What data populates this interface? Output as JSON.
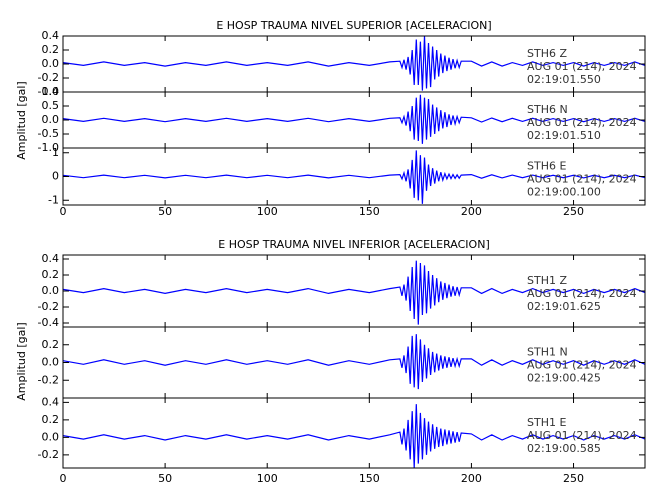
{
  "chart_data": [
    {
      "type": "line",
      "title": "E HOSP TRAUMA NIVEL SUPERIOR [ACELERACION]",
      "y_label": "Amplitud [gal]",
      "xlim": [
        0,
        285
      ],
      "xticks": [
        0,
        50,
        100,
        150,
        200,
        250
      ],
      "x": [
        0,
        10,
        20,
        30,
        40,
        50,
        60,
        70,
        80,
        90,
        100,
        110,
        120,
        130,
        140,
        150,
        160,
        165,
        166,
        167,
        168,
        169,
        170,
        171,
        172,
        173,
        174,
        175,
        176,
        177,
        178,
        179,
        180,
        181,
        182,
        183,
        184,
        185,
        186,
        187,
        188,
        189,
        190,
        191,
        192,
        193,
        194,
        195,
        200,
        205,
        210,
        215,
        220,
        225,
        230,
        235,
        240,
        245,
        250,
        255,
        260,
        265,
        270,
        275,
        280,
        285
      ],
      "panels": [
        {
          "annotation": [
            "STH6   Z",
            "AUG 01 (214), 2024",
            "02:19:01.550"
          ],
          "color": "#0000ff",
          "ylim": [
            -0.4,
            0.4
          ],
          "yticks": [
            -0.4,
            -0.2,
            {
              "value": 0,
              "label": "0.0"
            },
            0.2,
            0.4
          ],
          "values": [
            0.02,
            -0.02,
            0.03,
            -0.02,
            0.02,
            -0.03,
            0.02,
            -0.02,
            0.03,
            -0.02,
            0.02,
            -0.02,
            0.03,
            -0.03,
            0.02,
            -0.02,
            0.03,
            0.04,
            -0.05,
            0.06,
            -0.08,
            0.1,
            -0.15,
            0.2,
            -0.3,
            0.35,
            -0.3,
            0.32,
            -0.38,
            0.4,
            -0.35,
            0.3,
            -0.33,
            0.25,
            -0.22,
            0.2,
            -0.18,
            0.15,
            -0.13,
            0.12,
            -0.1,
            0.09,
            -0.08,
            0.07,
            -0.06,
            0.05,
            -0.05,
            0.04,
            0.04,
            -0.03,
            0.03,
            -0.03,
            0.02,
            -0.02,
            0.03,
            -0.02,
            0.02,
            -0.02,
            0.02,
            -0.03,
            0.02,
            -0.02,
            0.02,
            -0.02,
            0.03,
            -0.02
          ]
        },
        {
          "annotation": [
            "STH6   N",
            "AUG 01 (214), 2024",
            "02:19:01.510"
          ],
          "color": "#0000ff",
          "ylim": [
            -1,
            1
          ],
          "yticks": [
            {
              "value": -1,
              "label": "-1.0"
            },
            -0.5,
            {
              "value": 0,
              "label": "0.0"
            },
            0.5,
            {
              "value": 1,
              "label": "1.0"
            }
          ],
          "values": [
            0.05,
            -0.05,
            0.06,
            -0.05,
            0.05,
            -0.06,
            0.05,
            -0.05,
            0.06,
            -0.05,
            0.05,
            -0.05,
            0.06,
            -0.06,
            0.05,
            -0.05,
            0.06,
            0.08,
            -0.1,
            0.12,
            -0.2,
            0.3,
            -0.4,
            0.5,
            -0.7,
            0.8,
            -0.75,
            0.9,
            -0.85,
            0.8,
            -0.7,
            0.75,
            -0.6,
            0.55,
            -0.5,
            0.45,
            -0.4,
            0.35,
            -0.3,
            0.28,
            -0.25,
            0.2,
            -0.18,
            0.16,
            -0.14,
            0.12,
            -0.1,
            0.1,
            0.08,
            -0.07,
            0.07,
            -0.06,
            0.06,
            -0.05,
            0.06,
            -0.05,
            0.05,
            -0.05,
            0.05,
            -0.06,
            0.05,
            -0.05,
            0.05,
            -0.05,
            0.06,
            -0.05
          ]
        },
        {
          "annotation": [
            "STH6   E",
            "AUG 01 (214), 2024",
            "02:19:00.100"
          ],
          "color": "#0000ff",
          "ylim": [
            -1.2,
            1.2
          ],
          "yticks": [
            -1,
            0,
            1
          ],
          "values": [
            0.05,
            -0.05,
            0.06,
            -0.05,
            0.05,
            -0.06,
            0.05,
            -0.05,
            0.06,
            -0.05,
            0.05,
            -0.05,
            0.06,
            -0.06,
            0.05,
            -0.05,
            0.06,
            0.08,
            -0.1,
            0.15,
            -0.2,
            0.3,
            -0.5,
            0.7,
            -0.9,
            1.1,
            -1.0,
            0.9,
            -1.15,
            0.8,
            -0.6,
            0.5,
            -0.4,
            0.35,
            -0.3,
            0.25,
            -0.2,
            0.18,
            -0.15,
            0.12,
            -0.1,
            0.1,
            -0.09,
            0.08,
            -0.08,
            0.07,
            -0.07,
            0.06,
            0.08,
            -0.07,
            0.07,
            -0.06,
            0.06,
            -0.05,
            0.06,
            -0.05,
            0.05,
            -0.05,
            0.05,
            -0.06,
            0.05,
            -0.05,
            0.05,
            -0.05,
            0.06,
            -0.05
          ]
        }
      ]
    },
    {
      "type": "line",
      "title": "E HOSP TRAUMA NIVEL INFERIOR [ACELERACION]",
      "y_label": "Amplitud [gal]",
      "xlim": [
        0,
        285
      ],
      "xticks": [
        0,
        50,
        100,
        150,
        200,
        250
      ],
      "x": [
        0,
        10,
        20,
        30,
        40,
        50,
        60,
        70,
        80,
        90,
        100,
        110,
        120,
        130,
        140,
        150,
        160,
        165,
        166,
        167,
        168,
        169,
        170,
        171,
        172,
        173,
        174,
        175,
        176,
        177,
        178,
        179,
        180,
        181,
        182,
        183,
        184,
        185,
        186,
        187,
        188,
        189,
        190,
        191,
        192,
        193,
        194,
        195,
        200,
        205,
        210,
        215,
        220,
        225,
        230,
        235,
        240,
        245,
        250,
        255,
        260,
        265,
        270,
        275,
        280,
        285
      ],
      "panels": [
        {
          "annotation": [
            "STH1   Z",
            "AUG 01 (214), 2024",
            "02:19:01.625"
          ],
          "color": "#0000ff",
          "ylim": [
            -0.45,
            0.45
          ],
          "yticks": [
            -0.4,
            -0.2,
            {
              "value": 0,
              "label": "0.0"
            },
            0.2,
            0.4
          ],
          "values": [
            0.02,
            -0.02,
            0.03,
            -0.02,
            0.02,
            -0.03,
            0.02,
            -0.02,
            0.03,
            -0.02,
            0.02,
            -0.02,
            0.03,
            -0.03,
            0.02,
            -0.02,
            0.03,
            0.05,
            -0.06,
            0.08,
            -0.12,
            0.18,
            -0.25,
            0.3,
            -0.35,
            0.38,
            -0.42,
            0.35,
            -0.3,
            0.32,
            -0.28,
            0.25,
            -0.22,
            0.2,
            -0.18,
            0.16,
            -0.14,
            0.12,
            -0.11,
            0.1,
            -0.09,
            0.08,
            -0.07,
            0.06,
            -0.06,
            0.05,
            -0.05,
            0.04,
            0.04,
            -0.03,
            0.03,
            -0.03,
            0.02,
            -0.02,
            0.03,
            -0.02,
            0.02,
            -0.02,
            0.02,
            -0.03,
            0.02,
            -0.02,
            0.02,
            -0.02,
            0.03,
            -0.02
          ]
        },
        {
          "annotation": [
            "STH1   N",
            "AUG 01 (214), 2024",
            "02:19:00.425"
          ],
          "color": "#0000ff",
          "ylim": [
            -0.4,
            0.4
          ],
          "yticks": [
            -0.2,
            {
              "value": 0,
              "label": "0.0"
            },
            0.2
          ],
          "values": [
            0.02,
            -0.02,
            0.03,
            -0.02,
            0.02,
            -0.03,
            0.02,
            -0.02,
            0.03,
            -0.02,
            0.02,
            -0.02,
            0.03,
            -0.03,
            0.02,
            -0.02,
            0.03,
            0.04,
            -0.06,
            0.08,
            -0.12,
            0.18,
            -0.24,
            0.3,
            -0.28,
            0.32,
            -0.3,
            0.26,
            -0.22,
            0.2,
            -0.18,
            0.16,
            -0.14,
            0.12,
            -0.11,
            0.1,
            -0.09,
            0.08,
            -0.07,
            0.07,
            -0.06,
            0.06,
            -0.05,
            0.05,
            -0.04,
            0.04,
            -0.04,
            0.04,
            0.04,
            -0.03,
            0.03,
            -0.03,
            0.02,
            -0.02,
            0.03,
            -0.02,
            0.02,
            -0.02,
            0.02,
            -0.03,
            0.02,
            -0.02,
            0.02,
            -0.02,
            0.03,
            -0.02
          ]
        },
        {
          "annotation": [
            "STH1   E",
            "AUG 01 (214), 2024",
            "02:19:00.585"
          ],
          "color": "#0000ff",
          "ylim": [
            -0.35,
            0.45
          ],
          "yticks": [
            -0.2,
            {
              "value": 0,
              "label": "0.0"
            },
            0.2,
            0.4
          ],
          "values": [
            0.02,
            -0.02,
            0.03,
            -0.02,
            0.02,
            -0.03,
            0.02,
            -0.02,
            0.03,
            -0.02,
            0.02,
            -0.02,
            0.03,
            -0.03,
            0.02,
            -0.02,
            0.03,
            0.06,
            -0.08,
            0.1,
            -0.15,
            0.2,
            -0.25,
            0.3,
            -0.35,
            0.38,
            -0.3,
            0.28,
            -0.25,
            0.22,
            -0.2,
            0.18,
            -0.16,
            0.15,
            -0.13,
            0.12,
            -0.11,
            0.1,
            -0.1,
            0.09,
            -0.08,
            0.08,
            -0.07,
            0.07,
            -0.06,
            0.06,
            -0.05,
            0.05,
            0.04,
            -0.03,
            0.03,
            -0.03,
            0.02,
            -0.02,
            0.03,
            -0.02,
            0.02,
            -0.02,
            0.02,
            -0.03,
            0.02,
            -0.02,
            0.02,
            -0.02,
            0.03,
            -0.02
          ]
        }
      ]
    }
  ]
}
